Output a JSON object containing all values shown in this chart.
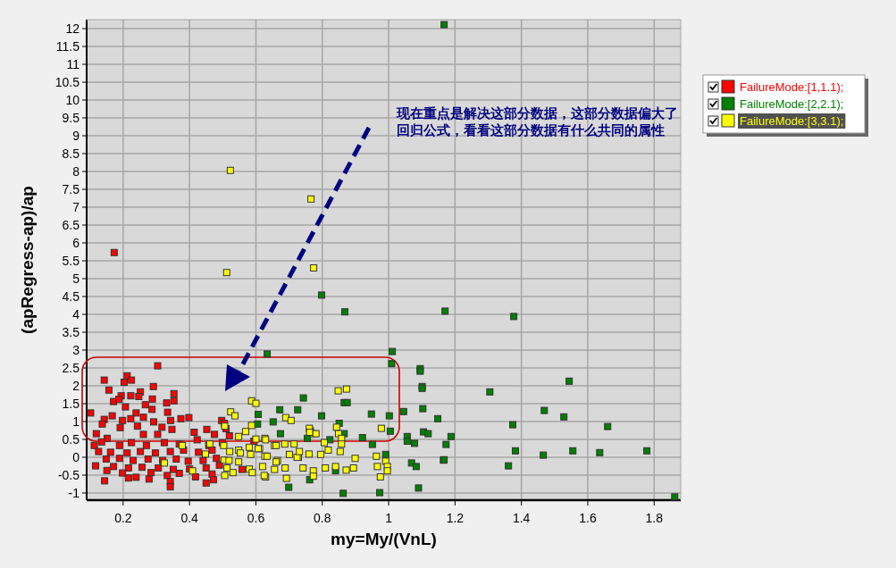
{
  "chart_data": {
    "type": "scatter",
    "xlabel": "my=My/(VnL)",
    "ylabel": "(apRegress-ap)/ap",
    "annotations": [
      "现在重点是解决这部分数据，这部分数据偏大了回归公式，看看这部分数据有什么共同的属性"
    ],
    "xlim": [
      0.09,
      1.88
    ],
    "ylim": [
      -1.2,
      12.25
    ],
    "xticks": [
      0.2,
      0.4,
      0.6,
      0.8,
      1,
      1.2,
      1.4,
      1.6,
      1.8
    ],
    "yticks": [
      -1,
      -0.5,
      0,
      0.5,
      1,
      1.5,
      2,
      2.5,
      3,
      3.5,
      4,
      4.5,
      5,
      5.5,
      6,
      6.5,
      7,
      7.5,
      8,
      8.5,
      9,
      9.5,
      10,
      10.5,
      11,
      11.5,
      12
    ],
    "grid": true,
    "legend": "top right",
    "marker": "square",
    "series": [
      {
        "name": "FailureMode:[1,1.1);",
        "color": "#ff0000",
        "x": [
          0.173,
          0.304,
          0.143,
          0.212,
          0.203,
          0.225,
          0.157,
          0.291,
          0.252,
          0.353,
          0.194,
          0.223,
          0.247,
          0.171,
          0.187,
          0.288,
          0.331,
          0.353,
          0.207,
          0.267,
          0.287,
          0.102,
          0.334,
          0.167,
          0.239,
          0.261,
          0.143,
          0.198,
          0.223,
          0.292,
          0.343,
          0.374,
          0.398,
          0.137,
          0.191,
          0.243,
          0.317,
          0.347,
          0.497,
          0.119,
          0.152,
          0.261,
          0.304,
          0.414,
          0.452,
          0.475,
          0.113,
          0.135,
          0.189,
          0.225,
          0.27,
          0.324,
          0.369,
          0.423,
          0.458,
          0.499,
          0.126,
          0.162,
          0.212,
          0.252,
          0.297,
          0.342,
          0.382,
          0.427,
          0.468,
          0.149,
          0.189,
          0.23,
          0.275,
          0.319,
          0.36,
          0.396,
          0.441,
          0.481,
          0.117,
          0.171,
          0.216,
          0.257,
          0.306,
          0.351,
          0.4,
          0.45,
          0.49,
          0.151,
          0.198,
          0.284,
          0.333,
          0.369,
          0.418,
          0.468,
          0.144,
          0.216,
          0.239,
          0.278,
          0.342,
          0.342,
          0.45,
          0.472,
          0.51,
          0.52,
          0.505,
          0.558,
          0.594
        ],
        "values": [
          5.73,
          2.56,
          2.16,
          2.28,
          2.1,
          2.16,
          1.88,
          1.98,
          1.83,
          1.78,
          1.72,
          1.72,
          1.7,
          1.56,
          1.62,
          1.63,
          1.52,
          1.58,
          1.41,
          1.47,
          1.34,
          1.24,
          1.26,
          1.16,
          1.24,
          1.12,
          1.06,
          1.03,
          1.08,
          0.99,
          1.03,
          1.08,
          1.11,
          0.93,
          0.83,
          0.87,
          0.84,
          0.78,
          1.03,
          0.66,
          0.53,
          0.64,
          0.64,
          0.7,
          0.78,
          0.64,
          0.33,
          0.43,
          0.33,
          0.41,
          0.33,
          0.41,
          0.37,
          0.49,
          0.33,
          0.41,
          0.16,
          0.14,
          0.12,
          0.16,
          0.12,
          0.16,
          0.2,
          0.14,
          0.2,
          -0.05,
          -0.03,
          -0.09,
          -0.05,
          -0.09,
          -0.05,
          -0.11,
          -0.09,
          -0.03,
          -0.24,
          -0.26,
          -0.3,
          -0.28,
          -0.3,
          -0.34,
          -0.33,
          -0.3,
          -0.22,
          -0.37,
          -0.44,
          -0.43,
          -0.51,
          -0.45,
          -0.55,
          -0.47,
          -0.66,
          -0.58,
          -0.56,
          -0.61,
          -0.68,
          -0.83,
          -0.72,
          -0.63,
          0.8,
          0.6,
          0.95,
          -0.34,
          0.45
        ]
      },
      {
        "name": "FailureMode:[2,2.1);",
        "color": "#008000",
        "x": [
          1.167,
          0.798,
          0.868,
          1.17,
          1.377,
          0.634,
          1.011,
          1.009,
          1.095,
          1.095,
          1.101,
          1.101,
          0.743,
          0.866,
          0.875,
          0.672,
          0.726,
          0.607,
          0.798,
          0.948,
          1.002,
          1.045,
          1.103,
          1.148,
          0.652,
          0.605,
          0.851,
          1.005,
          1.105,
          1.119,
          1.188,
          0.674,
          0.866,
          0.755,
          0.921,
          1.056,
          1.056,
          1.078,
          1.173,
          0.951,
          0.823,
          0.991,
          1.069,
          1.083,
          1.165,
          0.84,
          0.762,
          0.699,
          0.863,
          0.973,
          1.09,
          1.305,
          1.544,
          1.469,
          1.528,
          1.374,
          1.66,
          1.167,
          1.382,
          1.466,
          1.555,
          1.636,
          1.778,
          1.361,
          1.862
        ],
        "values": [
          12.11,
          4.54,
          4.07,
          4.09,
          3.94,
          2.89,
          2.96,
          2.62,
          2.48,
          2.41,
          1.98,
          1.93,
          1.66,
          1.53,
          1.53,
          1.33,
          1.33,
          1.2,
          1.16,
          1.21,
          1.16,
          1.28,
          1.36,
          1.08,
          0.99,
          0.93,
          0.95,
          0.73,
          0.71,
          0.66,
          0.58,
          0.66,
          0.66,
          0.53,
          0.55,
          0.58,
          0.45,
          0.39,
          0.36,
          0.36,
          0.49,
          0.08,
          -0.16,
          -0.26,
          -0.08,
          -0.38,
          -0.63,
          -0.84,
          -1.01,
          -0.99,
          -0.86,
          1.83,
          2.13,
          1.31,
          1.13,
          0.91,
          0.86,
          -0.07,
          0.18,
          0.06,
          0.18,
          0.13,
          0.18,
          -0.24,
          -1.11
        ]
      },
      {
        "name": "FailureMode:[3,3.1);",
        "color": "#ffff00",
        "x": [
          0.523,
          0.766,
          0.512,
          0.774,
          0.587,
          0.6,
          0.524,
          0.537,
          0.506,
          0.569,
          0.548,
          0.6,
          0.627,
          0.378,
          0.461,
          0.503,
          0.548,
          0.58,
          0.611,
          0.656,
          0.687,
          0.448,
          0.324,
          0.504,
          0.521,
          0.548,
          0.584,
          0.627,
          0.665,
          0.701,
          0.513,
          0.58,
          0.62,
          0.656,
          0.409,
          0.506,
          0.629,
          0.692,
          0.728,
          0.764,
          0.773,
          0.69,
          0.706,
          0.587,
          0.761,
          0.762,
          0.781,
          0.848,
          0.873,
          0.843,
          0.849,
          0.858,
          0.858,
          0.806,
          0.978,
          0.899,
          0.963,
          0.991,
          0.996,
          0.996,
          0.975,
          0.966,
          0.894,
          0.872,
          0.84,
          0.809,
          0.773,
          0.773,
          0.742,
          0.724,
          0.731,
          0.76,
          0.795,
          0.818,
          0.854,
          0.688,
          0.661,
          0.629,
          0.607,
          0.634,
          0.661,
          0.715,
          0.589,
          0.625,
          0.531,
          0.553,
          0.519
        ],
        "values": [
          8.03,
          7.23,
          5.17,
          5.3,
          1.58,
          1.51,
          1.27,
          1.16,
          0.87,
          0.72,
          0.58,
          0.51,
          0.53,
          0.33,
          0.37,
          0.33,
          0.2,
          0.28,
          0.24,
          0.33,
          0.37,
          0.09,
          -0.16,
          -0.08,
          0.16,
          -0.13,
          0.08,
          0.03,
          -0.09,
          0.08,
          -0.3,
          -0.33,
          -0.26,
          -0.34,
          -0.38,
          -0.51,
          -0.55,
          -0.59,
          0.0,
          0.74,
          0.66,
          1.11,
          1.03,
          0.89,
          0.81,
          0.7,
          0.66,
          1.86,
          1.91,
          0.84,
          0.66,
          0.53,
          0.37,
          0.41,
          0.81,
          -0.03,
          0.03,
          -0.11,
          -0.26,
          -0.38,
          -0.55,
          -0.26,
          -0.3,
          -0.36,
          -0.26,
          -0.3,
          -0.38,
          -0.53,
          -0.3,
          0.0,
          0.16,
          0.09,
          0.08,
          0.2,
          0.16,
          -0.3,
          0.33,
          0.49,
          0.24,
          0.03,
          -0.13,
          0.37,
          -0.43,
          -0.51,
          -0.43,
          0.12,
          -0.09
        ]
      }
    ]
  }
}
